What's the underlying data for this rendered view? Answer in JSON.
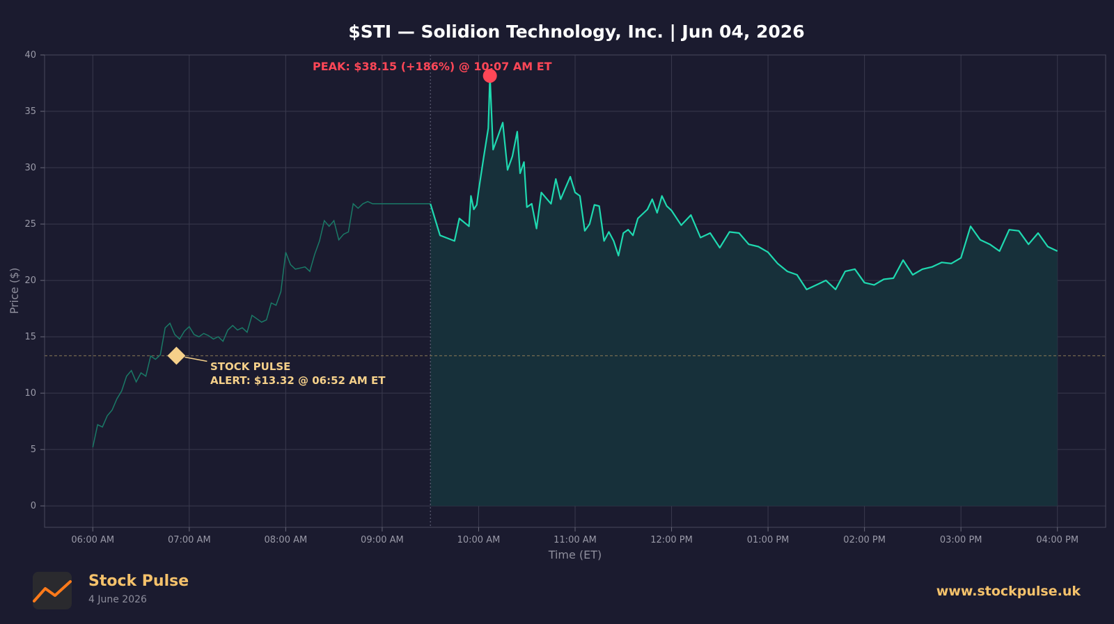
{
  "chart_data": {
    "type": "line",
    "title": "$STI — Solidion Technology, Inc.  |  Jun 04, 2026",
    "xlabel": "Time (ET)",
    "ylabel": "Price ($)",
    "ylim": [
      -1.9,
      40
    ],
    "yticks": [
      0,
      5,
      10,
      15,
      20,
      25,
      30,
      35,
      40
    ],
    "x_tick_labels": [
      "06:00 AM",
      "07:00 AM",
      "08:00 AM",
      "09:00 AM",
      "10:00 AM",
      "11:00 AM",
      "12:00 PM",
      "01:00 PM",
      "02:00 PM",
      "03:00 PM",
      "04:00 PM"
    ],
    "grid": true,
    "x_unit": "hours ET (24h)",
    "xlim": [
      5.5,
      16.5
    ],
    "market_open": 9.5,
    "premarket_series": {
      "x": [
        6.0,
        6.05,
        6.1,
        6.15,
        6.2,
        6.25,
        6.3,
        6.35,
        6.4,
        6.45,
        6.5,
        6.55,
        6.6,
        6.65,
        6.7,
        6.75,
        6.8,
        6.85,
        6.9,
        6.95,
        7.0,
        7.05,
        7.1,
        7.15,
        7.2,
        7.25,
        7.3,
        7.35,
        7.4,
        7.45,
        7.5,
        7.55,
        7.6,
        7.65,
        7.7,
        7.75,
        7.8,
        7.85,
        7.9,
        7.95,
        8.0,
        8.05,
        8.1,
        8.15,
        8.2,
        8.25,
        8.3,
        8.35,
        8.4,
        8.45,
        8.5,
        8.55,
        8.6,
        8.65,
        8.7,
        8.75,
        8.8,
        8.85,
        8.9,
        8.95,
        9.0,
        9.05,
        9.1,
        9.15,
        9.2,
        9.25,
        9.3,
        9.35,
        9.4,
        9.45,
        9.5
      ],
      "y": [
        5.2,
        7.2,
        7.0,
        8.0,
        8.5,
        9.5,
        10.2,
        11.5,
        12.0,
        11.0,
        11.8,
        11.5,
        13.3,
        13.0,
        13.4,
        15.8,
        16.2,
        15.2,
        14.8,
        15.5,
        15.9,
        15.2,
        15.0,
        15.3,
        15.1,
        14.8,
        15.0,
        14.6,
        15.6,
        16.0,
        15.6,
        15.8,
        15.4,
        16.9,
        16.6,
        16.3,
        16.5,
        18.0,
        17.8,
        19.0,
        22.5,
        21.4,
        21.0,
        21.1,
        21.2,
        20.8,
        22.3,
        23.5,
        25.3,
        24.8,
        25.3,
        23.6,
        24.1,
        24.3,
        26.8,
        26.4,
        26.8,
        27.0,
        26.8,
        26.8,
        26.8,
        26.8,
        26.8,
        26.8,
        26.8,
        26.8,
        26.8,
        26.8,
        26.8,
        26.8,
        26.8
      ]
    },
    "series": [
      {
        "x": [
          9.5,
          9.6,
          9.75,
          9.8,
          9.9,
          9.92,
          9.95,
          9.98,
          10.0,
          10.05,
          10.1,
          10.117,
          10.15,
          10.2,
          10.25,
          10.3,
          10.35,
          10.4,
          10.43,
          10.47,
          10.5,
          10.55,
          10.6,
          10.65,
          10.7,
          10.75,
          10.8,
          10.85,
          10.9,
          10.95,
          11.0,
          11.05,
          11.1,
          11.15,
          11.2,
          11.25,
          11.3,
          11.35,
          11.4,
          11.45,
          11.5,
          11.55,
          11.6,
          11.65,
          11.7,
          11.75,
          11.8,
          11.85,
          11.9,
          11.95,
          12.0,
          12.1,
          12.2,
          12.3,
          12.4,
          12.5,
          12.6,
          12.7,
          12.8,
          12.9,
          13.0,
          13.1,
          13.2,
          13.3,
          13.4,
          13.5,
          13.6,
          13.7,
          13.8,
          13.9,
          14.0,
          14.1,
          14.2,
          14.3,
          14.4,
          14.5,
          14.6,
          14.7,
          14.8,
          14.9,
          15.0,
          15.1,
          15.2,
          15.3,
          15.4,
          15.5,
          15.6,
          15.7,
          15.8,
          15.9,
          16.0
        ],
        "y": [
          26.8,
          24.0,
          23.5,
          25.5,
          24.8,
          27.5,
          26.3,
          26.7,
          28.0,
          30.8,
          33.5,
          38.15,
          31.6,
          32.8,
          34.0,
          29.8,
          31.0,
          33.2,
          29.5,
          30.5,
          26.5,
          26.8,
          24.6,
          27.8,
          27.3,
          26.8,
          29.0,
          27.2,
          28.2,
          29.2,
          27.8,
          27.5,
          24.4,
          25.0,
          26.7,
          26.6,
          23.5,
          24.3,
          23.5,
          22.2,
          24.2,
          24.5,
          24.0,
          25.5,
          25.9,
          26.3,
          27.2,
          26.0,
          27.5,
          26.6,
          26.2,
          24.9,
          25.8,
          23.8,
          24.2,
          22.9,
          24.3,
          24.2,
          23.2,
          23.0,
          22.5,
          21.5,
          20.8,
          20.5,
          19.2,
          19.6,
          20.0,
          19.2,
          20.8,
          21.0,
          19.8,
          19.6,
          20.1,
          20.2,
          21.8,
          20.5,
          21.0,
          21.2,
          21.6,
          21.5,
          22.0,
          24.8,
          23.6,
          23.2,
          22.6,
          24.5,
          24.4,
          23.2,
          24.2,
          23.0,
          22.6
        ]
      }
    ],
    "peak": {
      "x": 10.117,
      "y": 38.15,
      "label": "PEAK: $38.15 (+186%) @ 10:07 AM ET"
    },
    "alert": {
      "x": 6.867,
      "y": 13.32,
      "label_line1": "STOCK PULSE",
      "label_line2": "ALERT: $13.32 @ 06:52 AM ET"
    },
    "colors": {
      "line": "#1fd9b0",
      "premarket": "#1a7a67",
      "fill": "#17303a",
      "grid": "#3a3a4e",
      "peak": "#ff4757",
      "alert": "#f5d08a",
      "background": "#1b1b2f"
    }
  },
  "footer": {
    "brand": "Stock Pulse",
    "date": "4 June 2026",
    "url": "www.stockpulse.uk",
    "logo_icon": "trend-line-icon"
  }
}
